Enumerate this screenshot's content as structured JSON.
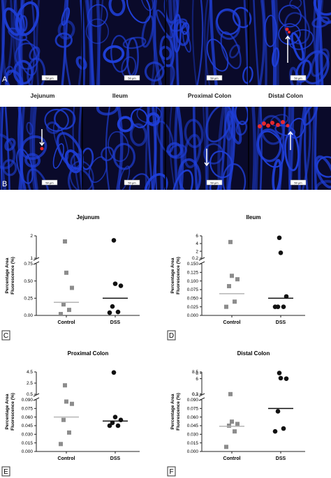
{
  "micrographs": {
    "panel_a": {
      "letter": "A",
      "scale_bars": [
        "50 μm",
        "50 μm",
        "50 μm",
        "50 μm"
      ]
    },
    "panel_b": {
      "letter": "B",
      "scale_bars": [
        "50 μm",
        "50 μm",
        "50 μm",
        "50 μm"
      ]
    },
    "regions": [
      "Jejunum",
      "Ileum",
      "Proximal Colon",
      "Distal Colon"
    ],
    "colors": {
      "tissue": "#1f3fd8",
      "background": "#0a0a2a",
      "signal": "#ff2a2a",
      "arrow": "#ffffff"
    }
  },
  "chart_data": [
    {
      "type": "scatter",
      "letter": "C",
      "title": "Jejunum",
      "ylabel": "Percentage Area\nFluorescence (%)",
      "categories": [
        "Control",
        "DSS"
      ],
      "y_segments": [
        {
          "range": [
            0,
            0.75
          ],
          "ticks": [
            "0.00",
            "0.25",
            "0.50",
            "0.75"
          ]
        },
        {
          "range": [
            1,
            2
          ],
          "ticks": [
            "1",
            "2"
          ]
        }
      ],
      "series": [
        {
          "category": "Control",
          "marker": "square",
          "color": "#8c8c8c",
          "values": [
            0.02,
            0.08,
            0.16,
            0.4,
            0.62,
            1.75
          ],
          "mean": 0.19
        },
        {
          "category": "DSS",
          "marker": "circle",
          "color": "#111111",
          "values": [
            0.04,
            0.05,
            0.13,
            0.43,
            0.46,
            1.8
          ],
          "mean": 0.25
        }
      ]
    },
    {
      "type": "scatter",
      "letter": "D",
      "title": "Ileum",
      "ylabel": "Percentage Area\nFluorescence (%)",
      "categories": [
        "Control",
        "DSS"
      ],
      "y_segments": [
        {
          "range": [
            0,
            0.15
          ],
          "ticks": [
            "0.000",
            "0.025",
            "0.050",
            "0.075",
            "0.100",
            "0.125",
            "0.150"
          ]
        },
        {
          "range": [
            0.2,
            6
          ],
          "ticks": [
            "0.2",
            "2",
            "4",
            "6"
          ]
        }
      ],
      "series": [
        {
          "category": "Control",
          "marker": "square",
          "color": "#8c8c8c",
          "values": [
            0.025,
            0.04,
            0.085,
            0.105,
            0.115,
            4.4
          ],
          "mean": 0.063
        },
        {
          "category": "DSS",
          "marker": "circle",
          "color": "#111111",
          "values": [
            0.025,
            0.025,
            0.025,
            0.055,
            1.6,
            5.5
          ],
          "mean": 0.05
        }
      ]
    },
    {
      "type": "scatter",
      "letter": "E",
      "title": "Proximal Colon",
      "ylabel": "Percentage Area\nFluorescence (%)",
      "categories": [
        "Control",
        "DSS"
      ],
      "y_segments": [
        {
          "range": [
            0,
            0.09
          ],
          "ticks": [
            "0.000",
            "0.015",
            "0.030",
            "0.045",
            "0.060",
            "0.075",
            "0.090"
          ]
        },
        {
          "range": [
            0.5,
            4.5
          ],
          "ticks": [
            "0.5",
            "2.5",
            "4.5"
          ]
        }
      ],
      "series": [
        {
          "category": "Control",
          "marker": "square",
          "color": "#8c8c8c",
          "values": [
            0.013,
            0.033,
            0.055,
            0.083,
            0.087,
            2.1
          ],
          "mean": 0.06
        },
        {
          "category": "DSS",
          "marker": "circle",
          "color": "#111111",
          "values": [
            0.045,
            0.045,
            0.05,
            0.055,
            0.06,
            4.4
          ],
          "mean": 0.053
        }
      ]
    },
    {
      "type": "scatter",
      "letter": "F",
      "title": "Distal Colon",
      "ylabel": "Percentage Area\nFluorescence (%)",
      "categories": [
        "Control",
        "DSS"
      ],
      "y_segments": [
        {
          "range": [
            0,
            0.09
          ],
          "ticks": [
            "0.000",
            "0.015",
            "0.030",
            "0.045",
            "0.060",
            "0.075",
            "0.090"
          ]
        },
        {
          "range": [
            0.2,
            8.5
          ],
          "ticks": [
            "0.2",
            "0.3",
            "6",
            "8",
            "8.5"
          ]
        }
      ],
      "series": [
        {
          "category": "Control",
          "marker": "square",
          "color": "#8c8c8c",
          "values": [
            0.008,
            0.035,
            0.045,
            0.048,
            0.052,
            0.25
          ],
          "mean": 0.044
        },
        {
          "category": "DSS",
          "marker": "circle",
          "color": "#111111",
          "values": [
            0.035,
            0.04,
            0.07,
            6,
            6.2,
            8.1
          ],
          "mean": 0.075
        }
      ]
    }
  ]
}
